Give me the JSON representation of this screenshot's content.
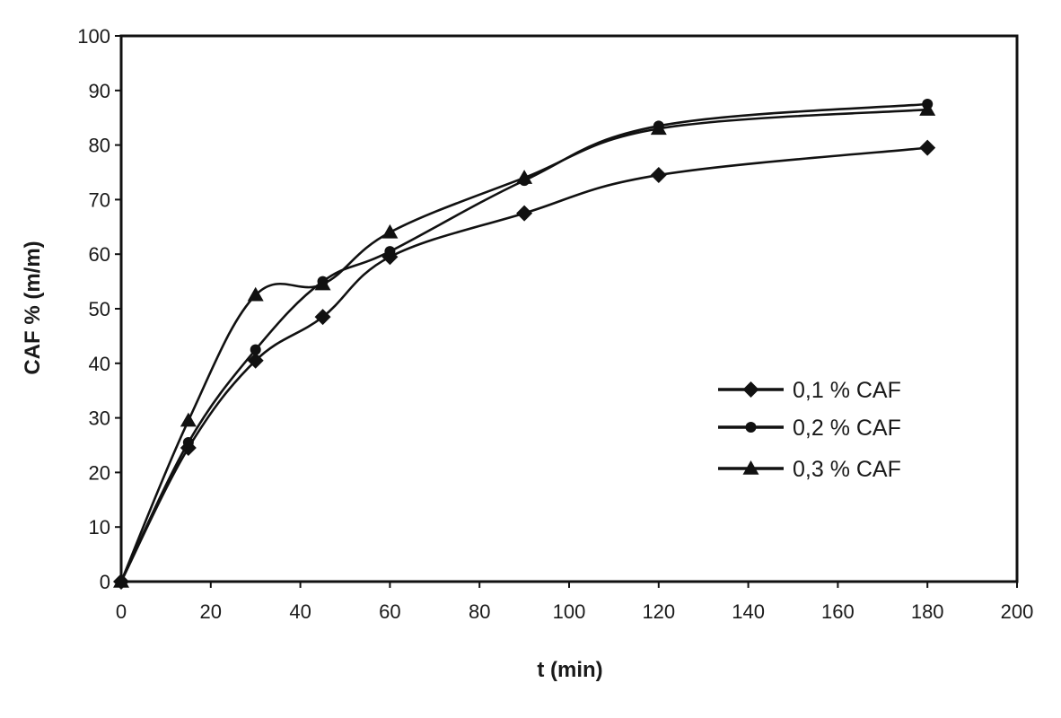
{
  "chart_data": {
    "type": "line",
    "title": "",
    "xlabel": "t (min)",
    "ylabel": "CAF % (m/m)",
    "xlim": [
      0,
      200
    ],
    "ylim": [
      0,
      100
    ],
    "xticks": [
      0,
      20,
      40,
      60,
      80,
      100,
      120,
      140,
      160,
      180,
      200
    ],
    "yticks": [
      0,
      10,
      20,
      30,
      40,
      50,
      60,
      70,
      80,
      90,
      100
    ],
    "grid": false,
    "legend_position": "right-center",
    "series": [
      {
        "name": "0,1 % CAF",
        "marker": "diamond",
        "x": [
          0,
          15,
          30,
          45,
          60,
          90,
          120,
          180
        ],
        "y": [
          0,
          24.5,
          40.5,
          48.5,
          59.5,
          67.5,
          74.5,
          79.5
        ]
      },
      {
        "name": "0,2 % CAF",
        "marker": "circle",
        "x": [
          0,
          15,
          30,
          45,
          60,
          90,
          120,
          180
        ],
        "y": [
          0,
          25.5,
          42.5,
          55.0,
          60.5,
          73.5,
          83.5,
          87.5
        ]
      },
      {
        "name": "0,3 % CAF",
        "marker": "triangle",
        "x": [
          0,
          15,
          30,
          45,
          60,
          90,
          120,
          180
        ],
        "y": [
          0,
          29.5,
          52.5,
          54.5,
          64.0,
          74.0,
          83.0,
          86.5
        ]
      }
    ]
  }
}
